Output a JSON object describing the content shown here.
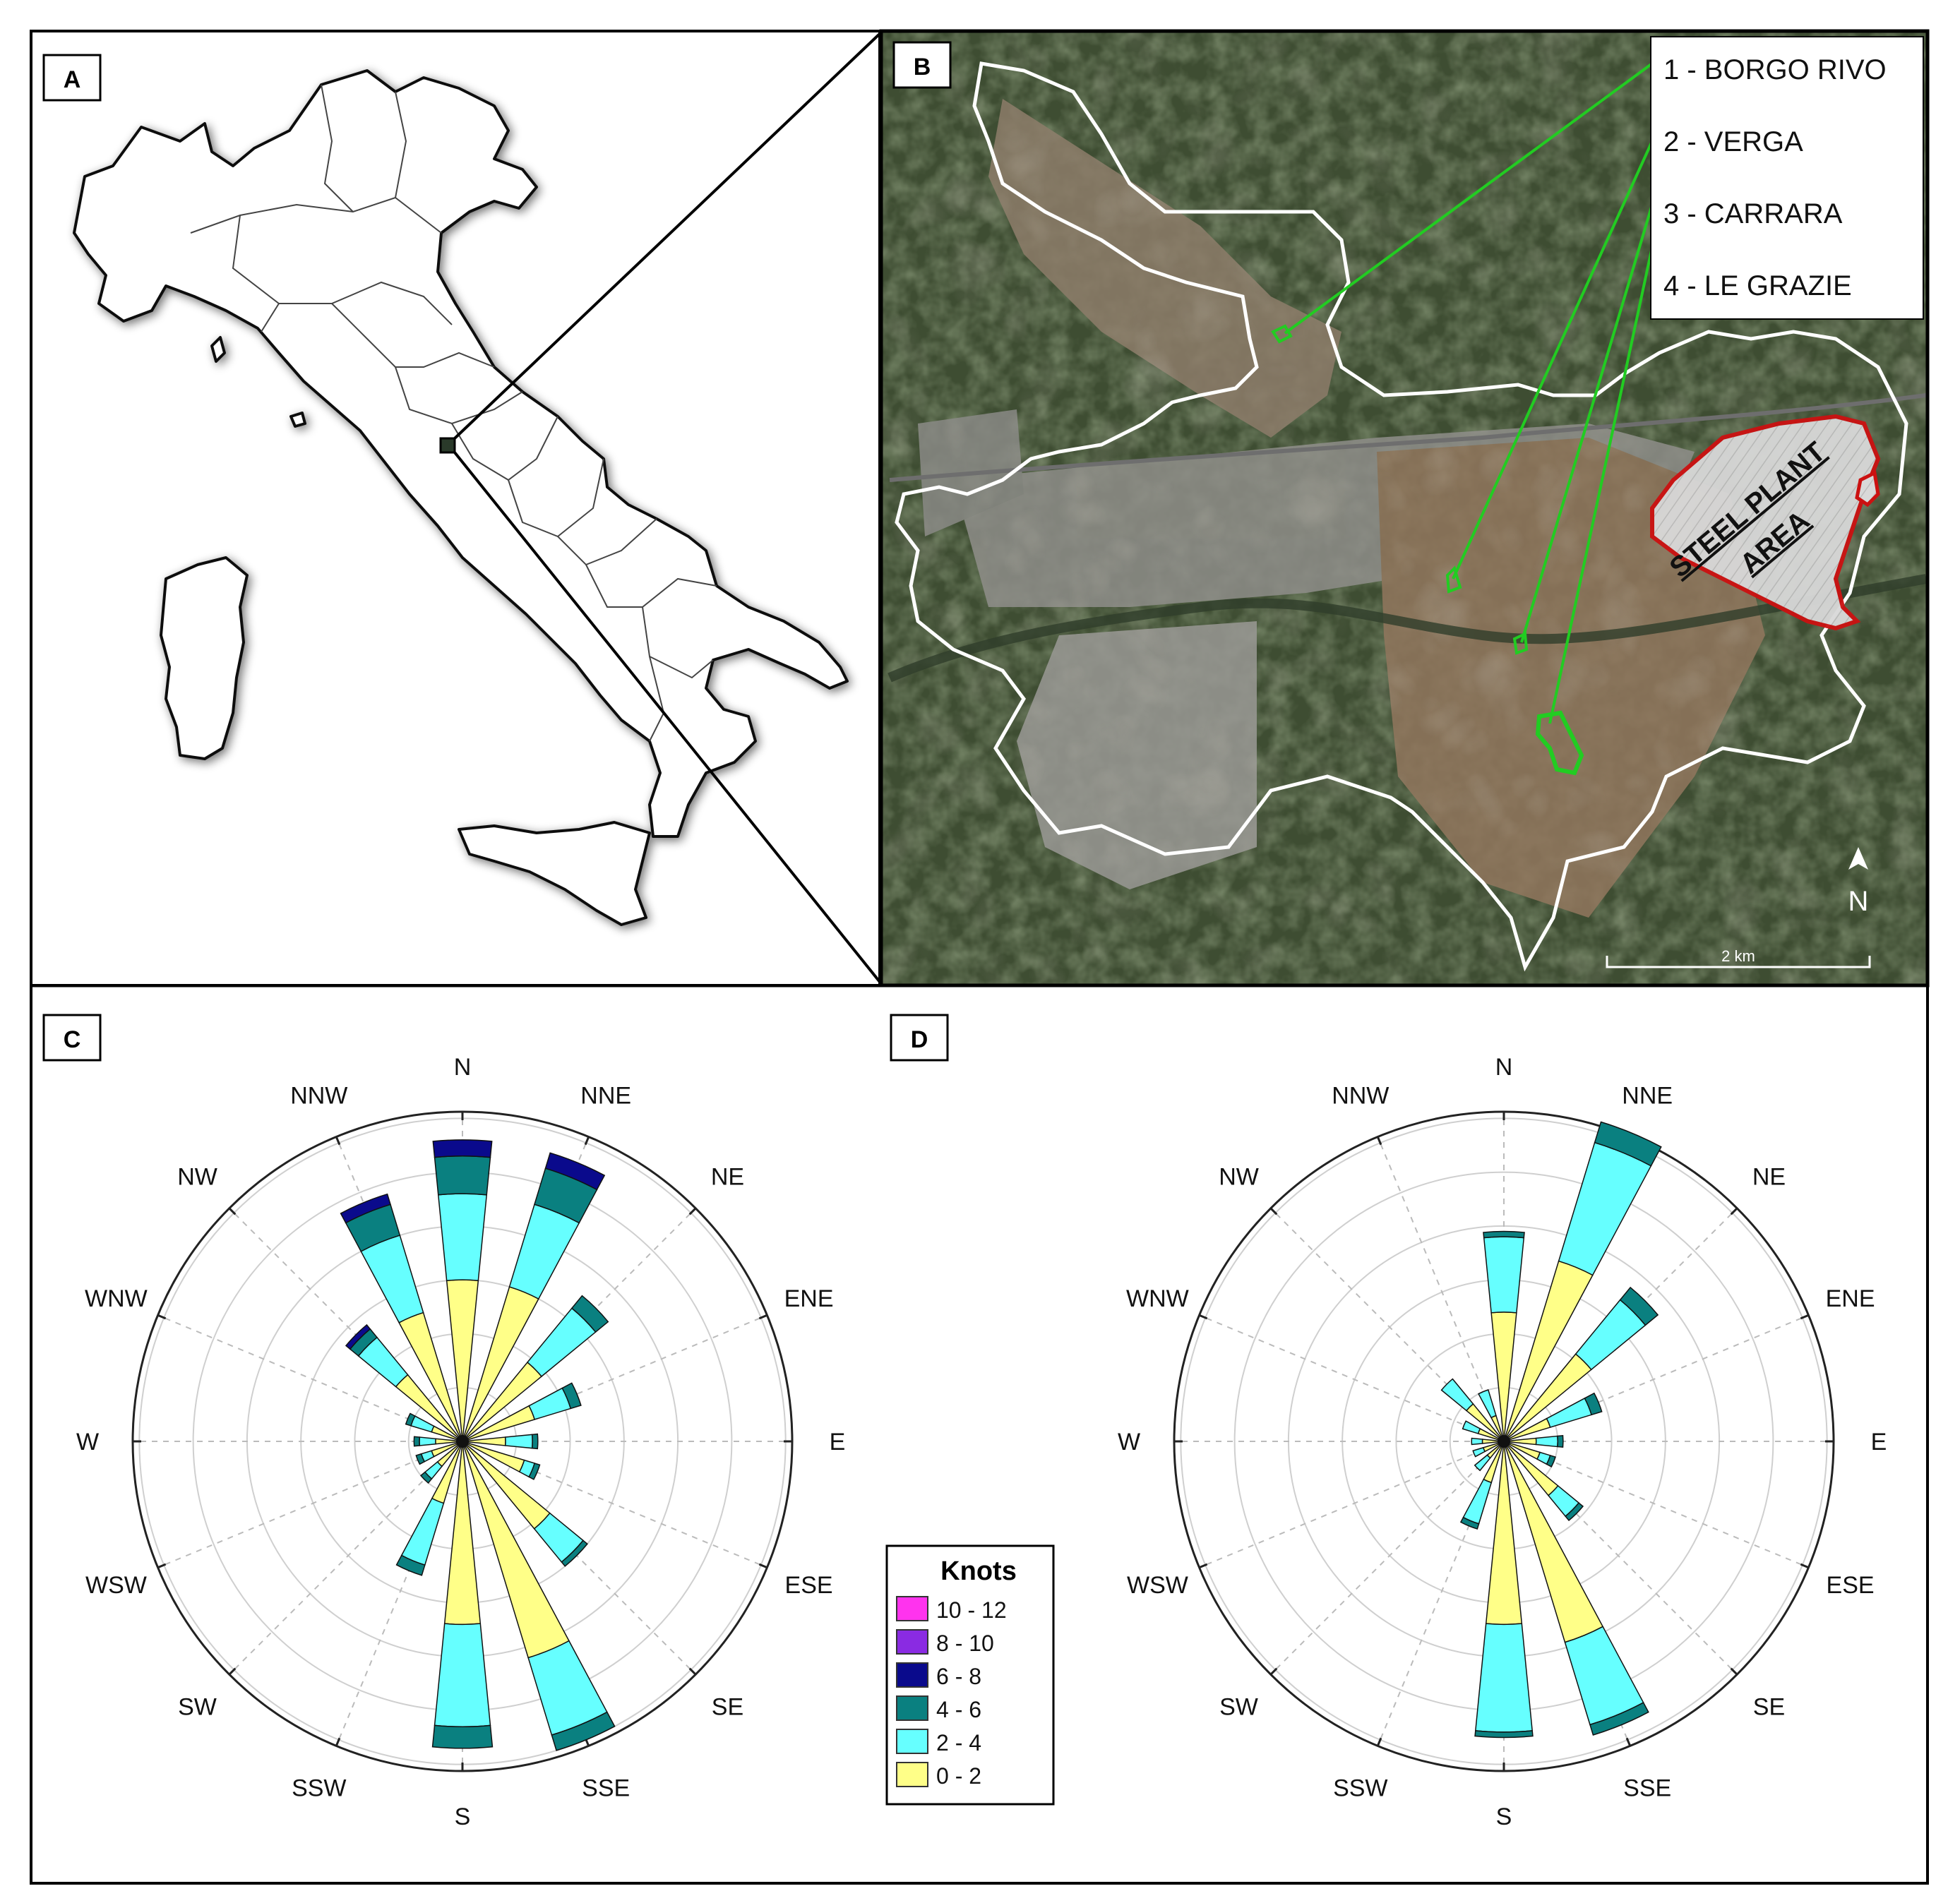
{
  "panels": {
    "a": {
      "label": "A"
    },
    "b": {
      "label": "B"
    },
    "c": {
      "label": "C"
    },
    "d": {
      "label": "D"
    }
  },
  "map_b": {
    "sites": [
      {
        "label": "1 - BORGO RIVO"
      },
      {
        "label": "2 - VERGA"
      },
      {
        "label": "3 - CARRARA"
      },
      {
        "label": "4 - LE GRAZIE"
      }
    ],
    "area_label_line1": "STEEL PLANT",
    "area_label_line2": "AREA",
    "north_label": "N",
    "scale_label": "2 km",
    "colors": {
      "site": "#22cc22",
      "boundary": "#ffffff",
      "steel_area": "#cc1111"
    }
  },
  "legend": {
    "title": "Knots",
    "items": [
      {
        "label": "10 - 12",
        "color": "#ff33ee"
      },
      {
        "label": "8 - 10",
        "color": "#8a2be2"
      },
      {
        "label": "6 - 8",
        "color": "#0a0a8c"
      },
      {
        "label": "4 - 6",
        "color": "#0a8080"
      },
      {
        "label": "2 - 4",
        "color": "#66ffff"
      },
      {
        "label": "0 - 2",
        "color": "#ffff88"
      }
    ]
  },
  "chart_data": [
    {
      "type": "wind_rose",
      "panel": "C",
      "directions": [
        "N",
        "NNE",
        "NE",
        "ENE",
        "E",
        "ESE",
        "SE",
        "SSE",
        "S",
        "SSW",
        "SW",
        "WSW",
        "W",
        "WNW",
        "NW",
        "NNW"
      ],
      "speed_bins": [
        "0 - 2",
        "2 - 4",
        "4 - 6",
        "6 - 8",
        "8 - 10",
        "10 - 12"
      ],
      "cumulative_radius": [
        [
          3.0,
          4.6,
          5.3,
          5.6,
          5.6,
          5.6
        ],
        [
          3.0,
          4.6,
          5.3,
          5.6,
          5.6,
          5.6
        ],
        [
          1.9,
          3.2,
          3.5,
          3.5,
          3.5,
          3.5
        ],
        [
          1.4,
          2.1,
          2.3,
          2.3,
          2.3,
          2.3
        ],
        [
          0.8,
          1.3,
          1.4,
          1.4,
          1.4,
          1.4
        ],
        [
          1.2,
          1.4,
          1.5,
          1.5,
          1.5,
          1.5
        ],
        [
          2.1,
          2.9,
          3.0,
          3.0,
          3.0,
          3.0
        ],
        [
          4.2,
          5.7,
          6.0,
          6.0,
          6.0,
          6.0
        ],
        [
          3.4,
          5.3,
          5.7,
          5.7,
          5.7,
          5.7
        ],
        [
          1.2,
          2.4,
          2.6,
          2.6,
          2.6,
          2.6
        ],
        [
          0.6,
          0.9,
          1.0,
          1.0,
          1.0,
          1.0
        ],
        [
          0.6,
          0.8,
          0.9,
          0.9,
          0.9,
          0.9
        ],
        [
          0.5,
          0.8,
          0.9,
          0.9,
          0.9,
          0.9
        ],
        [
          0.6,
          1.0,
          1.1,
          1.1,
          1.1,
          1.1
        ],
        [
          1.6,
          2.5,
          2.7,
          2.8,
          2.8,
          2.8
        ],
        [
          2.5,
          4.0,
          4.6,
          4.8,
          4.8,
          4.8
        ]
      ],
      "rings": 6
    },
    {
      "type": "wind_rose",
      "panel": "D",
      "directions": [
        "N",
        "NNE",
        "NE",
        "ENE",
        "E",
        "ESE",
        "SE",
        "SSE",
        "S",
        "SSW",
        "SW",
        "WSW",
        "W",
        "WNW",
        "NW",
        "NNW"
      ],
      "speed_bins": [
        "0 - 2",
        "2 - 4",
        "4 - 6",
        "6 - 8",
        "8 - 10",
        "10 - 12"
      ],
      "cumulative_radius": [
        [
          2.4,
          3.8,
          3.9,
          3.9,
          3.9,
          3.9
        ],
        [
          3.5,
          5.8,
          6.2,
          6.2,
          6.2,
          6.2
        ],
        [
          2.1,
          3.4,
          3.7,
          3.7,
          3.7,
          3.7
        ],
        [
          0.9,
          1.7,
          1.9,
          1.9,
          1.9,
          1.9
        ],
        [
          0.6,
          1.0,
          1.1,
          1.1,
          1.1,
          1.1
        ],
        [
          0.7,
          0.9,
          1.0,
          1.0,
          1.0,
          1.0
        ],
        [
          1.3,
          1.8,
          1.9,
          1.9,
          1.9,
          1.9
        ],
        [
          3.9,
          5.5,
          5.7,
          5.7,
          5.7,
          5.7
        ],
        [
          3.4,
          5.4,
          5.5,
          5.5,
          5.5,
          5.5
        ],
        [
          0.8,
          1.6,
          1.7,
          1.7,
          1.7,
          1.7
        ],
        [
          0.4,
          0.7,
          0.7,
          0.7,
          0.7,
          0.7
        ],
        [
          0.4,
          0.6,
          0.6,
          0.6,
          0.6,
          0.6
        ],
        [
          0.4,
          0.6,
          0.6,
          0.6,
          0.6,
          0.6
        ],
        [
          0.5,
          0.8,
          0.8,
          0.8,
          0.8,
          0.8
        ],
        [
          0.9,
          1.5,
          1.5,
          1.5,
          1.5,
          1.5
        ],
        [
          0.5,
          1.0,
          1.0,
          1.0,
          1.0,
          1.0
        ]
      ],
      "rings": 6
    }
  ]
}
